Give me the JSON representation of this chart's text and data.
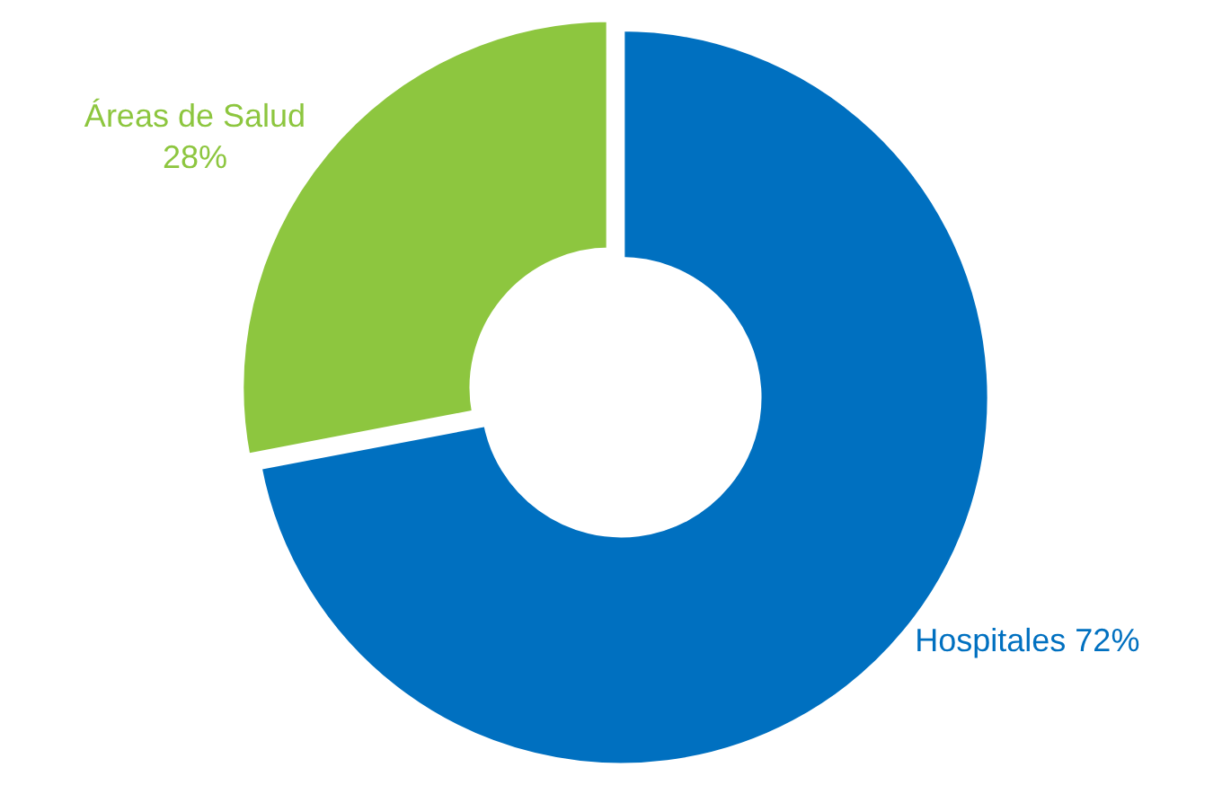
{
  "chart_data": {
    "type": "donut",
    "categories": [
      "Hospitales",
      "Áreas de Salud"
    ],
    "values": [
      72,
      28
    ],
    "value_labels": [
      "72%",
      "28%"
    ],
    "colors": [
      "#0070c0",
      "#8dc63f"
    ]
  }
}
